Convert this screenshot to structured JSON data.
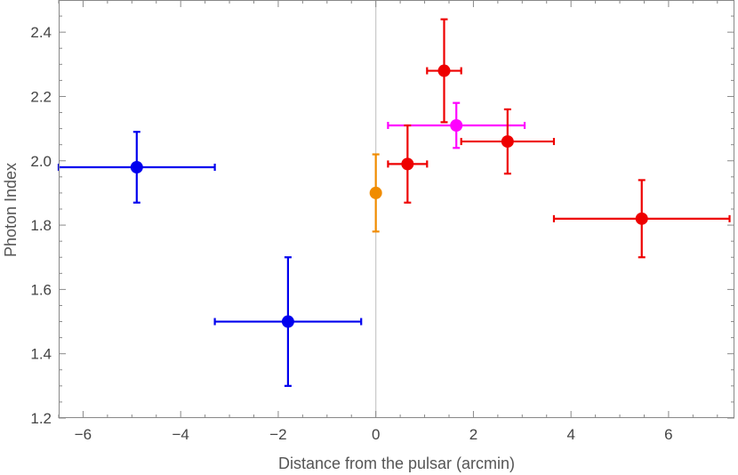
{
  "chart_data": {
    "type": "scatter",
    "xlabel": "Distance from the pulsar (arcmin)",
    "ylabel": "Photon Index",
    "xlim": [
      -6.5,
      7.35
    ],
    "ylim": [
      1.2,
      2.5
    ],
    "xticks": [
      -6,
      -4,
      -2,
      0,
      2,
      4,
      6
    ],
    "xtick_labels": [
      "−6",
      "−4",
      "−2",
      "0",
      "2",
      "4",
      "6"
    ],
    "yticks": [
      1.2,
      1.4,
      1.6,
      1.8,
      2.0,
      2.2,
      2.4
    ],
    "ytick_labels": [
      "1.2",
      "1.4",
      "1.6",
      "1.8",
      "2.0",
      "2.2",
      "2.4"
    ],
    "vertical_reference_line_x": 0,
    "grid": false,
    "series": [
      {
        "color": "#0000ee",
        "points": [
          {
            "x": -4.9,
            "y": 1.98,
            "xmin": -6.5,
            "xmax": -3.3,
            "ymin": 1.87,
            "ymax": 2.09
          },
          {
            "x": -1.8,
            "y": 1.5,
            "xmin": -3.3,
            "xmax": -0.3,
            "ymin": 1.3,
            "ymax": 1.7
          }
        ]
      },
      {
        "color": "#f08c00",
        "points": [
          {
            "x": 0.0,
            "y": 1.9,
            "ymin": 1.78,
            "ymax": 2.02
          }
        ]
      },
      {
        "color": "#ff00ff",
        "points": [
          {
            "x": 1.65,
            "y": 2.11,
            "xmin": 0.25,
            "xmax": 3.05,
            "ymin": 2.04,
            "ymax": 2.18
          }
        ]
      },
      {
        "color": "#ee0000",
        "points": [
          {
            "x": 0.65,
            "y": 1.99,
            "xmin": 0.25,
            "xmax": 1.05,
            "ymin": 1.87,
            "ymax": 2.11
          },
          {
            "x": 1.4,
            "y": 2.28,
            "xmin": 1.05,
            "xmax": 1.75,
            "ymin": 2.12,
            "ymax": 2.44
          },
          {
            "x": 2.7,
            "y": 2.06,
            "xmin": 1.75,
            "xmax": 3.65,
            "ymin": 1.96,
            "ymax": 2.16
          },
          {
            "x": 5.45,
            "y": 1.82,
            "xmin": 3.65,
            "xmax": 7.25,
            "ymin": 1.7,
            "ymax": 1.94
          }
        ]
      }
    ]
  }
}
